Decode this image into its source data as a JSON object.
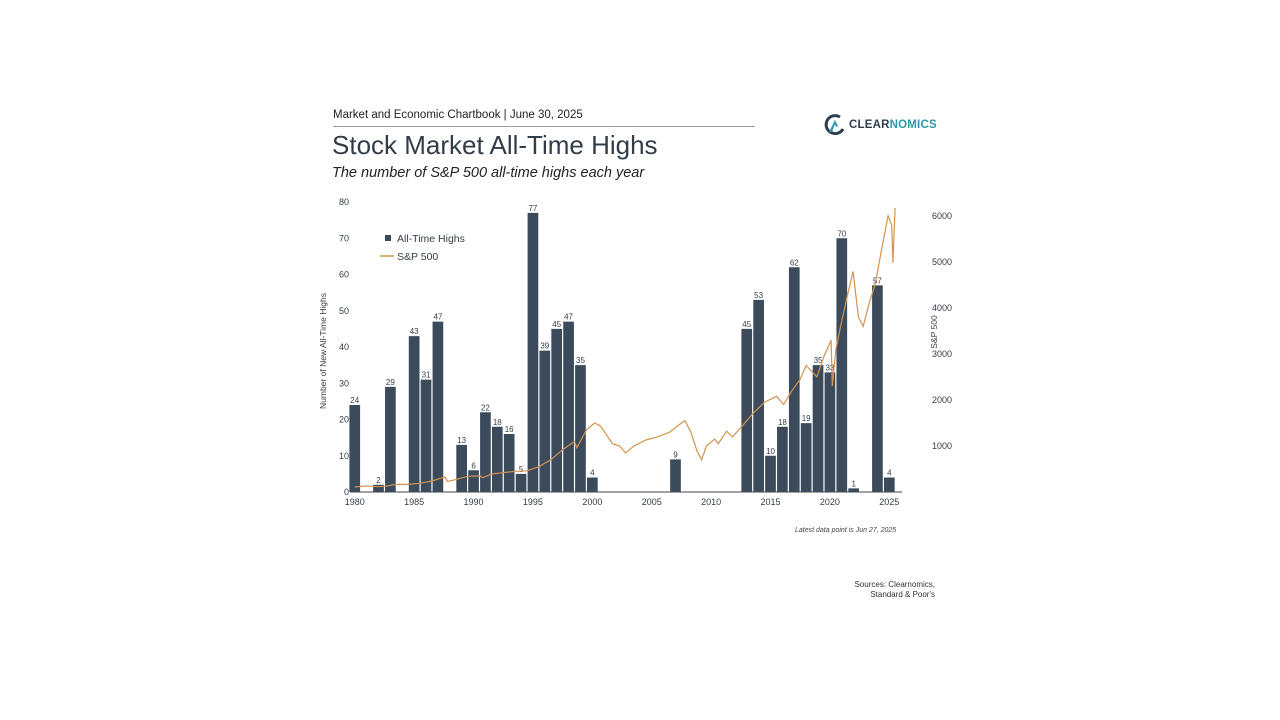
{
  "header": {
    "top_line": "Market and Economic Chartbook | June 30, 2025",
    "title": "Stock Market All-Time Highs",
    "subtitle": "The number of S&P 500 all-time highs each year"
  },
  "logo": {
    "text_dark": "CLEAR",
    "text_teal": "NOMICS"
  },
  "footer": {
    "note": "Latest data point is Jun 27, 2025",
    "sources_line1": "Sources: Clearnomics,",
    "sources_line2": "Standard & Poor's"
  },
  "colors": {
    "bar": "#3b4b5c",
    "line": "#d4934e",
    "text": "#333d47"
  },
  "chart_data": {
    "type": "bar",
    "ylabel": "Number of New All-Time Highs",
    "y2label": "S&P 500",
    "ylim": [
      0,
      80
    ],
    "y2lim": [
      0,
      6300
    ],
    "yticks": [
      0,
      10,
      20,
      30,
      40,
      50,
      60,
      70,
      80
    ],
    "y2ticks": [
      1000,
      2000,
      3000,
      4000,
      5000,
      6000
    ],
    "xticks": [
      1980,
      1985,
      1990,
      1995,
      2000,
      2005,
      2010,
      2015,
      2020,
      2025
    ],
    "legend_position": "top-left",
    "series": [
      {
        "name": "All-Time Highs",
        "kind": "bar",
        "x": [
          1980,
          1982,
          1983,
          1985,
          1986,
          1987,
          1989,
          1990,
          1991,
          1992,
          1993,
          1994,
          1995,
          1996,
          1997,
          1998,
          1999,
          2000,
          2007,
          2013,
          2014,
          2015,
          2016,
          2017,
          2018,
          2019,
          2020,
          2021,
          2022,
          2024,
          2025
        ],
        "values": [
          24,
          2,
          29,
          43,
          31,
          47,
          13,
          6,
          22,
          18,
          16,
          5,
          77,
          39,
          45,
          47,
          35,
          4,
          9,
          45,
          53,
          10,
          18,
          62,
          19,
          35,
          33,
          70,
          1,
          57,
          4
        ]
      },
      {
        "name": "S&P 500",
        "kind": "line",
        "x": [
          1980.0,
          1981.0,
          1982.0,
          1982.6,
          1983.5,
          1984.5,
          1985.5,
          1986.5,
          1987.6,
          1987.8,
          1988.5,
          1989.5,
          1990.5,
          1990.8,
          1991.5,
          1992.5,
          1993.5,
          1994.5,
          1995.5,
          1996.5,
          1997.5,
          1998.5,
          1998.7,
          1999.5,
          2000.2,
          2000.7,
          2001.3,
          2001.7,
          2002.3,
          2002.8,
          2003.5,
          2004.5,
          2005.5,
          2006.5,
          2007.5,
          2007.8,
          2008.3,
          2008.8,
          2009.2,
          2009.6,
          2010.3,
          2010.6,
          2011.3,
          2011.8,
          2012.5,
          2013.5,
          2014.5,
          2015.5,
          2016.1,
          2016.8,
          2017.5,
          2018.0,
          2018.9,
          2019.5,
          2020.1,
          2020.2,
          2020.5,
          2020.9,
          2021.5,
          2021.95,
          2022.4,
          2022.8,
          2023.3,
          2023.8,
          2024.3,
          2024.9,
          2025.2,
          2025.3,
          2025.49
        ],
        "values": [
          110,
          130,
          115,
          125,
          165,
          165,
          190,
          240,
          330,
          230,
          270,
          340,
          350,
          310,
          390,
          420,
          450,
          460,
          550,
          700,
          920,
          1100,
          960,
          1350,
          1500,
          1430,
          1200,
          1050,
          1000,
          850,
          1000,
          1130,
          1200,
          1300,
          1500,
          1550,
          1300,
          900,
          700,
          1000,
          1150,
          1050,
          1320,
          1200,
          1400,
          1700,
          1950,
          2080,
          1900,
          2200,
          2450,
          2750,
          2500,
          2950,
          3300,
          2300,
          3100,
          3600,
          4300,
          4790,
          3800,
          3600,
          4100,
          4500,
          5200,
          6000,
          5800,
          4980,
          6170
        ]
      }
    ]
  }
}
